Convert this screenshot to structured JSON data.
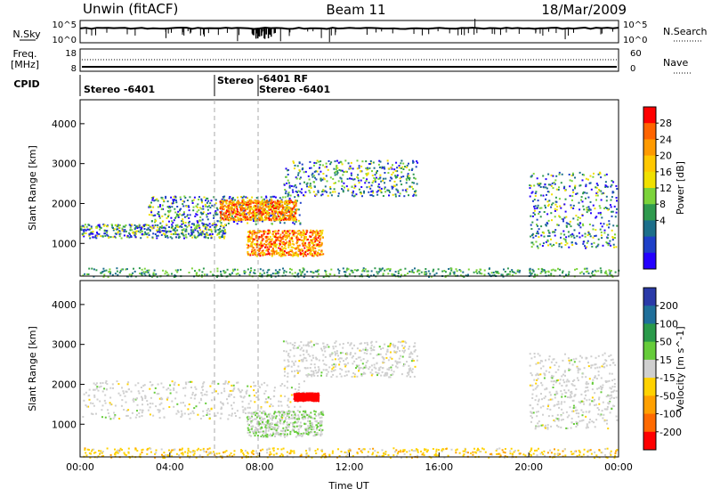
{
  "header": {
    "left": "Unwin (fitACF)",
    "center": "Beam 11",
    "right": "18/Mar/2009"
  },
  "top_panels": {
    "nsky_label": "N.Sky",
    "nsky_ticks": [
      "10^5",
      "10^0"
    ],
    "nsearch_label": "N.Search",
    "freq_label_1": "Freq.",
    "freq_label_2": "[MHz]",
    "freq_ticks": [
      "18",
      "8"
    ],
    "nave_label": "Nave",
    "nave_ticks": [
      "60",
      "0"
    ],
    "cpid_label": "CPID",
    "cpid_segments": [
      {
        "label": "Stereo -6401",
        "start_hour": 0
      },
      {
        "label": "Stereo",
        "start_hour": 6.0
      },
      {
        "label": "-6401 RF",
        "start_hour": 8.0
      },
      {
        "label": "Stereo -6401",
        "start_hour": 8.0
      }
    ]
  },
  "x_axis": {
    "label": "Time UT",
    "ticks": [
      "00:00",
      "04:00",
      "08:00",
      "12:00",
      "16:00",
      "20:00",
      "00:00"
    ],
    "range_hours": [
      0,
      24
    ]
  },
  "chart_data": [
    {
      "type": "heatmap",
      "quantity": "Power",
      "ylabel": "Slant Range [km]",
      "yticks": [
        1000,
        2000,
        3000,
        4000
      ],
      "ylim": [
        180,
        4600
      ],
      "colorbar_label": "Power [dB]",
      "colorbar_ticks": [
        "28",
        "24",
        "20",
        "16",
        "12",
        "8",
        "4"
      ],
      "colorbar_colors": [
        "#ff0000",
        "#ff6400",
        "#ff9a00",
        "#ffc800",
        "#f0e000",
        "#7bd33a",
        "#2f9a4e",
        "#1c6f8a",
        "#1e40c8",
        "#2400ff"
      ],
      "scatter_regions": [
        {
          "t0": 0.0,
          "t1": 6.5,
          "r0": 1150,
          "r1": 1500,
          "note": "evening band"
        },
        {
          "t0": 3.0,
          "t1": 9.8,
          "r0": 1500,
          "r1": 2200
        },
        {
          "t0": 6.2,
          "t1": 9.6,
          "r0": 1600,
          "r1": 2100,
          "strong": true
        },
        {
          "t0": 7.4,
          "t1": 10.8,
          "r0": 700,
          "r1": 1350,
          "strong": true
        },
        {
          "t0": 9.0,
          "t1": 15.0,
          "r0": 2200,
          "r1": 3100
        },
        {
          "t0": 20.0,
          "t1": 23.9,
          "r0": 900,
          "r1": 2800
        },
        {
          "t0": 0.0,
          "t1": 24.0,
          "r0": 180,
          "r1": 400,
          "note": "ground scatter"
        }
      ]
    },
    {
      "type": "heatmap",
      "quantity": "Velocity",
      "ylabel": "Slant Range [km]",
      "yticks": [
        1000,
        2000,
        3000,
        4000
      ],
      "ylim": [
        180,
        4600
      ],
      "colorbar_label": "Velocity [m s^-1]",
      "colorbar_ticks": [
        "200",
        "100",
        "50",
        "15",
        "-15",
        "-50",
        "-100",
        "-200"
      ],
      "colorbar_colors": [
        "#2a3aa8",
        "#1f6f9a",
        "#2a9a4a",
        "#66cc3a",
        "#cfcfcf",
        "#ffd200",
        "#ffa000",
        "#ff6a00",
        "#ff0000"
      ],
      "scatter_regions": [
        {
          "t0": 0.0,
          "t1": 10.0,
          "r0": 1150,
          "r1": 2100,
          "note": "gray low-velocity"
        },
        {
          "t0": 7.4,
          "t1": 10.8,
          "r0": 700,
          "r1": 1350,
          "note": "green-gray"
        },
        {
          "t0": 9.5,
          "t1": 10.6,
          "r0": 1600,
          "r1": 1800,
          "note": "red"
        },
        {
          "t0": 9.0,
          "t1": 15.0,
          "r0": 2200,
          "r1": 3100
        },
        {
          "t0": 20.0,
          "t1": 23.9,
          "r0": 900,
          "r1": 2800
        },
        {
          "t0": 0.0,
          "t1": 24.0,
          "r0": 180,
          "r1": 420,
          "note": "ground scatter"
        }
      ]
    }
  ]
}
